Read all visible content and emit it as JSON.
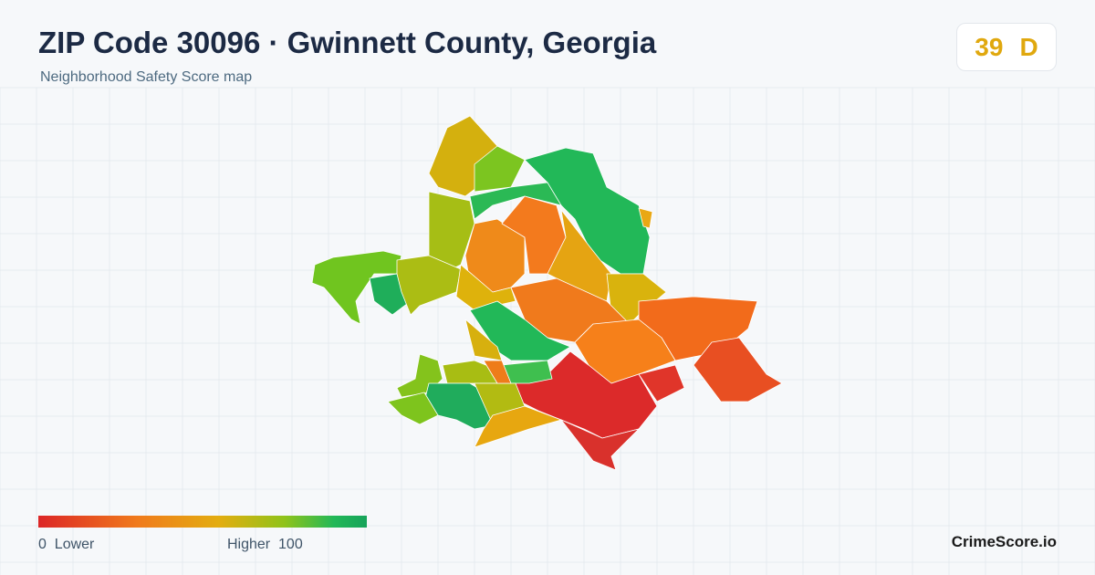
{
  "header": {
    "title": "ZIP Code 30096 · Gwinnett County, Georgia",
    "subtitle": "Neighborhood Safety Score map"
  },
  "score": {
    "value": 39,
    "grade": "D"
  },
  "legend": {
    "min": 0,
    "min_label": "Lower",
    "max_label": "Higher",
    "max": 100
  },
  "brand": "CrimeScore.io"
}
